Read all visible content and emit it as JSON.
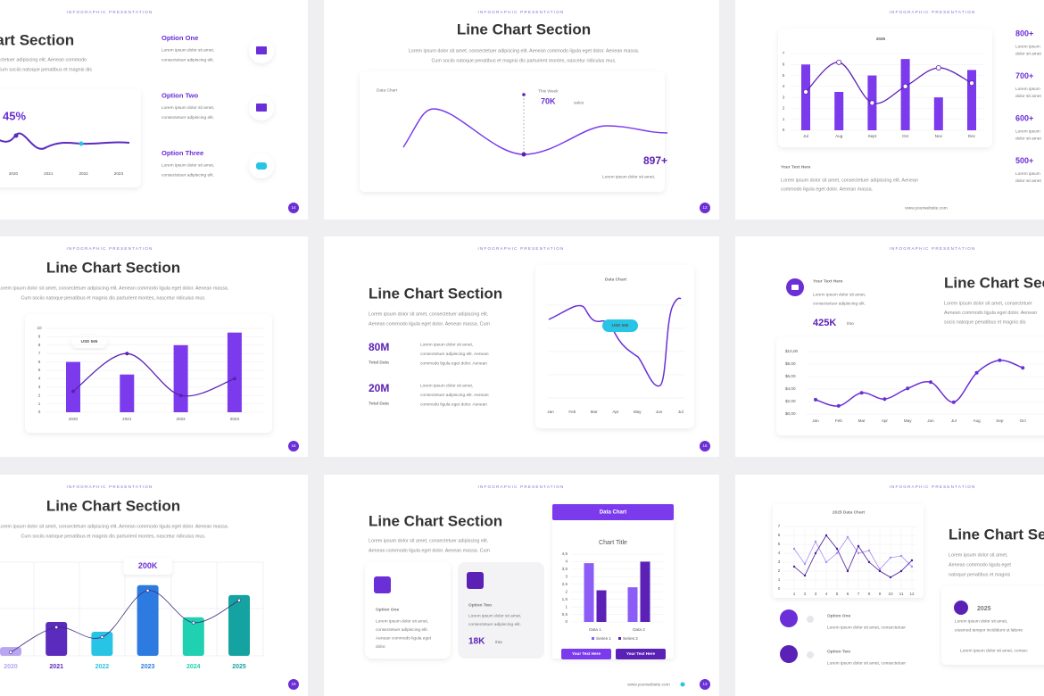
{
  "slides": [
    {
      "header": "INFOGRAPHIC PRESENTATION",
      "title": "Line Chart Section",
      "body": [
        "Lorem ipsum dolor sit amet, consectetuer adipiscing elit. Aenean commodo",
        "ligula eget dolor. Aenean massa. Cum sociis natoque penatibus et magnis dis"
      ],
      "stat": "45%",
      "years": [
        "2020",
        "2021",
        "2022",
        "2023"
      ],
      "options": [
        {
          "title": "Option One",
          "text": [
            "Lorem ipsum dolor sit amet,",
            "consectetuer adipiscing elit."
          ]
        },
        {
          "title": "Option Two",
          "text": [
            "Lorem ipsum dolor sit amet,",
            "consectetuer adipiscing elit."
          ]
        },
        {
          "title": "Option Three",
          "text": [
            "Lorem ipsum dolor sit amet,",
            "consectetuer adipiscing elit."
          ]
        }
      ],
      "page": "14"
    },
    {
      "header": "INFOGRAPHIC PRESENTATION",
      "title": "Line Chart Section",
      "body": [
        "Lorem ipsum dolor sit amet, consectetuer adipiscing elit. Aenean commodo ligula eget dolor. Aenean massa.",
        "Cum sociis natoque penatibus et magnis dis parturient montes, nascetur ridiculus mus."
      ],
      "card_label": "Data Chart",
      "week_label": "This Week",
      "week_value": "70K",
      "week_unit": "sales",
      "total": "897+",
      "total_text": "Lorem ipsum dolor sit amet,",
      "page": "12"
    },
    {
      "header": "INFOGRAPHIC PRESENTATION",
      "chart": {
        "type": "bar",
        "title": "2025",
        "categories": [
          "Jul",
          "Aug",
          "Sept",
          "Oct",
          "Nov",
          "Dec"
        ],
        "bars": {
          "color": "#7c3aed",
          "values": [
            6,
            3.5,
            5,
            6.5,
            3,
            5.5
          ]
        },
        "line": {
          "color": "#5b21b6",
          "values": [
            3.5,
            6.2,
            2.5,
            4,
            5.7,
            4.3
          ]
        },
        "ylim": [
          0,
          7
        ],
        "yticks": [
          0,
          1,
          2,
          3,
          4,
          5,
          6,
          7
        ]
      },
      "caption_title": "Your Text Here",
      "caption_text": [
        "Lorem ipsum dolor sit amet, consectetuer adipiscing elit. Aenean",
        "commodo ligula eget dolor. Aenean massa."
      ],
      "website": "www.yourwebsite.com",
      "stats": [
        {
          "value": "800+",
          "color": "#6a2fd6",
          "text": [
            "Lorem ipsum",
            "dolor sit amet"
          ]
        },
        {
          "value": "700+",
          "color": "#6a2fd6",
          "text": [
            "Lorem ipsum",
            "dolor sit amet"
          ]
        },
        {
          "value": "600+",
          "color": "#27b5c9",
          "text": [
            "Lorem ipsum",
            "dolor sit amet"
          ]
        },
        {
          "value": "500+",
          "color": "#1a7fd0",
          "text": [
            "Lorem ipsum",
            "dolor sit amet"
          ]
        }
      ]
    },
    {
      "header": "INFOGRAPHIC PRESENTATION",
      "title": "Line Chart Section",
      "body": [
        "Lorem ipsum dolor sit amet, consectetuer adipiscing elit. Aenean commodo ligula eget dolor. Aenean massa.",
        "Cum sociis natoque penatibus et magnis dis parturient montes, nascetur ridiculus mus."
      ],
      "chart": {
        "type": "bar",
        "categories": [
          "2020",
          "2021",
          "2022",
          "2023"
        ],
        "bars": {
          "color": "#7c3aed",
          "values": [
            6,
            4.5,
            8,
            9.5
          ]
        },
        "line": {
          "color": "#5b21b6",
          "values": [
            2.5,
            7,
            2,
            4
          ]
        },
        "ylim": [
          0,
          10
        ],
        "yticks": [
          0,
          1,
          2,
          3,
          4,
          5,
          6,
          7,
          8,
          9,
          10
        ]
      },
      "callout": "USD 565",
      "page": "15"
    },
    {
      "header": "INFOGRAPHIC PRESENTATION",
      "title": "Line Chart Section",
      "body": [
        "Lorem ipsum dolor sit amet, consectetuer adipiscing elit.",
        "Aenean commodo ligula eget dolor. Aenean massa. Cum"
      ],
      "stats": [
        {
          "value": "80M",
          "label": "Total Data",
          "text": [
            "Lorem ipsum dolor sit amet,",
            "consectetuer adipiscing elit. Aenean",
            "commodo ligula eget dolor. Aenean"
          ]
        },
        {
          "value": "20M",
          "label": "Total Data",
          "text": [
            "Lorem ipsum dolor sit amet,",
            "consectetuer adipiscing elit. Aenean",
            "commodo ligula eget dolor. Aenean"
          ]
        }
      ],
      "chart": {
        "type": "line",
        "title": "Data Chart",
        "categories": [
          "Jan",
          "Feb",
          "Mar",
          "Apr",
          "May",
          "Jun",
          "Jul"
        ]
      },
      "callout": "USD 565",
      "page": "16"
    },
    {
      "header": "INFOGRAPHIC PRESENTATION",
      "feature": {
        "title": "Your Text Here",
        "text": [
          "Lorem ipsum dolor sit amet,",
          "consectetuer adipiscing elit."
        ],
        "value": "425K",
        "unit": "/mo"
      },
      "title": "Line Chart Section",
      "body": [
        "Lorem ipsum dolor sit amet, consectetuer",
        "Aenean commodo ligula eget dolor. Aenean",
        "socis natoque penatibus et magnis dis"
      ],
      "chart": {
        "type": "line",
        "categories": [
          "Jan",
          "Feb",
          "Mar",
          "Apr",
          "May",
          "Jun",
          "Jul",
          "Aug",
          "Sep",
          "Oct"
        ],
        "values": [
          2.3,
          1.3,
          3.4,
          2.4,
          4.1,
          5.1,
          1.9,
          6.6,
          8.6,
          7.4
        ],
        "color": "#6a2fd6",
        "ylim": [
          0,
          10
        ],
        "yticks": [
          {
            "value": 0,
            "label": "$0,00"
          },
          {
            "value": 2,
            "label": "$2,00"
          },
          {
            "value": 4,
            "label": "$4,00"
          },
          {
            "value": 6,
            "label": "$6,00"
          },
          {
            "value": 8,
            "label": "$8,00"
          },
          {
            "value": 10,
            "label": "$10,00"
          }
        ]
      }
    },
    {
      "header": "INFOGRAPHIC PRESENTATION",
      "title": "Line Chart Section",
      "body": [
        "Lorem ipsum dolor sit amet, consectetuer adipiscing elit. Aenean commodo ligula eget dolor. Aenean massa.",
        "Cum sociis natoque penatibus et magnis dis parturient montes, nascetur ridiculus mus."
      ],
      "chart": {
        "type": "bar",
        "categories": [
          "2020",
          "2021",
          "2022",
          "2023",
          "2024",
          "2025"
        ],
        "values": [
          25,
          96,
          68,
          200,
          109,
          172
        ],
        "value_labels": [
          null,
          null,
          null,
          "200K",
          null,
          null
        ],
        "colors": [
          "#b9a6f0",
          "#5b2bbd",
          "#27c4e6",
          "#2d7be0",
          "#1fd1b0",
          "#14a3a0"
        ],
        "ylim": [
          0,
          265
        ]
      },
      "page": "19"
    },
    {
      "header": "INFOGRAPHIC PRESENTATION",
      "title": "Line Chart Section",
      "body": [
        "Lorem ipsum dolor sit amet, consectetuer adipiscing elit.",
        "Aenean commodo ligula eget dolor. Aenean massa. Cum"
      ],
      "options": [
        {
          "title": "Option One",
          "text": [
            "Lorem ipsum dolor sit amet,",
            "consectetuer adipiscing elit.",
            "Aenean commodo ligula eget",
            "dolor."
          ]
        },
        {
          "title": "Option Two",
          "text": [
            "Lorem ipsum dolor sit amet,",
            "consectetuer adipiscing elit."
          ]
        }
      ],
      "option_value": "18K",
      "option_unit": "/mo",
      "chart": {
        "type": "bar",
        "banner": "Data Chart",
        "title": "Chart Title",
        "categories": [
          "Data 1",
          "Data 2"
        ],
        "series": [
          {
            "name": "Series 1",
            "color": "#8b5cf6",
            "values": [
              3.9,
              2.3
            ]
          },
          {
            "name": "Series 2",
            "color": "#5b21b6",
            "values": [
              2.1,
              4
            ]
          }
        ],
        "ylim": [
          0,
          4.5
        ],
        "yticks": [
          0,
          {
            "value": 0.5,
            "label": "0,5"
          },
          1,
          {
            "value": 1.5,
            "label": "1,5"
          },
          2,
          {
            "value": 2.5,
            "label": "2,5"
          },
          3,
          {
            "value": 3.5,
            "label": "3,5"
          },
          4,
          {
            "value": 4.5,
            "label": "4,5"
          }
        ],
        "buttons": [
          "Your Text Here",
          "Your Text Here"
        ]
      },
      "website": "www.yourwebsite.com",
      "page": "13"
    },
    {
      "header": "INFOGRAPHIC PRESENTATION",
      "chart": {
        "type": "line",
        "title": "2025 Data Chart",
        "categories": [
          "1",
          "2",
          "3",
          "4",
          "5",
          "6",
          "7",
          "8",
          "9",
          "10",
          "11",
          "12"
        ],
        "series": [
          {
            "color": "#a78bfa",
            "values": [
              4.5,
              2.8,
              5.3,
              3,
              4,
              5.8,
              4,
              4.3,
              2.2,
              3.5,
              3.7,
              2.5
            ]
          },
          {
            "color": "#4c1d95",
            "values": [
              2.5,
              1.5,
              4,
              6,
              4.5,
              2,
              4.8,
              3,
              2,
              1.3,
              2,
              3.2
            ]
          }
        ],
        "ylim": [
          0,
          7
        ],
        "yticks": [
          0,
          1,
          2,
          3,
          4,
          5,
          6,
          7
        ]
      },
      "title": "Line Chart Section",
      "body": [
        "Lorem ipsum dolor sit amet,",
        "Aenean commodo ligula eget",
        "natoque penatibus et magnis"
      ],
      "card": {
        "title": "2025",
        "text": [
          "Lorem ipsum dolor sit amet,",
          "eiusmod tempor incididunt ut labore"
        ],
        "bullet": "Lorem ipsum dolor sit amet, consec"
      },
      "options": [
        {
          "title": "Option One",
          "text": "Lorem ipsum dolor sit amet, consectetuer"
        },
        {
          "title": "Option Two",
          "text": "Lorem ipsum dolor sit amet, consectetuer"
        }
      ]
    }
  ]
}
